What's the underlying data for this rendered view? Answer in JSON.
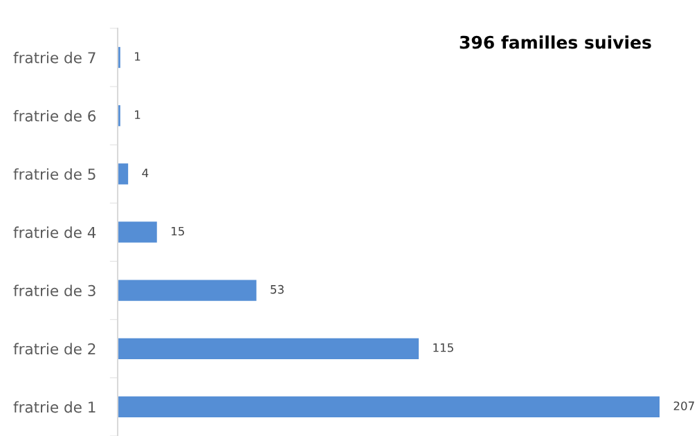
{
  "chart_data": {
    "type": "bar",
    "orientation": "horizontal",
    "title": "396 familles suivies",
    "categories": [
      "fratrie de 7",
      "fratrie de 6",
      "fratrie de 5",
      "fratrie de 4",
      "fratrie de 3",
      "fratrie de 2",
      "fratrie de 1"
    ],
    "values": [
      1,
      1,
      4,
      15,
      53,
      115,
      207
    ],
    "color": "#558ed5",
    "data_labels": true,
    "grid": false,
    "legend": false
  }
}
